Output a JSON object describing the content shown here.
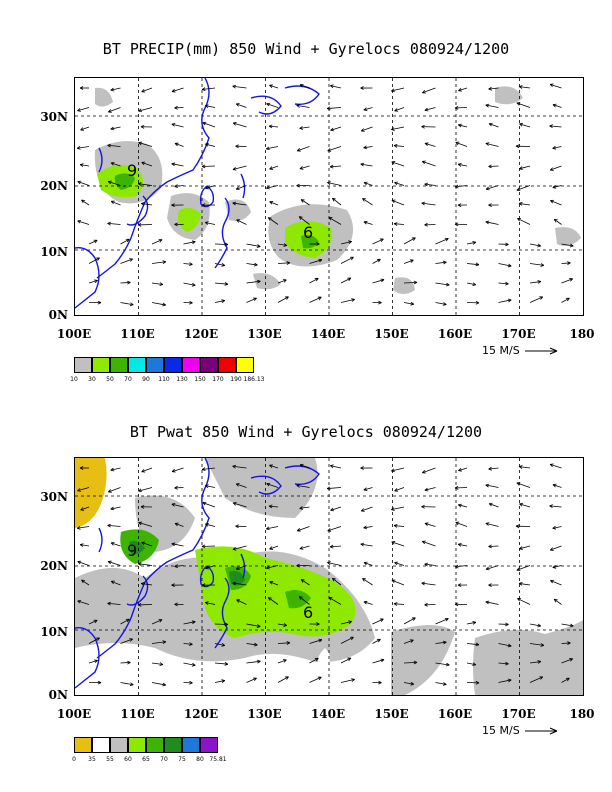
{
  "panels": [
    {
      "title": "BT PRECIP(mm) 850 Wind + Gyrelocs 080924/1200",
      "lat_labels": [
        "30N",
        "20N",
        "10N",
        "0N"
      ],
      "lon_labels": [
        "100E",
        "110E",
        "120E",
        "130E",
        "140E",
        "150E",
        "160E",
        "170E",
        "180"
      ],
      "ref_vector_label": "15 M/S",
      "storm_markers": [
        "9",
        "6"
      ],
      "legend": {
        "colors": [
          "#c0c0c0",
          "#8fe800",
          "#3cb400",
          "#00e8e8",
          "#1e78dc",
          "#0a28e8",
          "#f000f0",
          "#780078",
          "#f00000",
          "#ffff00"
        ],
        "labels": [
          "10",
          "30",
          "50",
          "70",
          "90",
          "110",
          "130",
          "150",
          "170",
          "190",
          "186.13"
        ]
      }
    },
    {
      "title": "BT Pwat 850 Wind + Gyrelocs 080924/1200",
      "lat_labels": [
        "30N",
        "20N",
        "10N",
        "0N"
      ],
      "lon_labels": [
        "100E",
        "110E",
        "120E",
        "130E",
        "140E",
        "150E",
        "160E",
        "170E",
        "180"
      ],
      "ref_vector_label": "15 M/S",
      "storm_markers": [
        "9",
        "6"
      ],
      "legend": {
        "colors": [
          "#e6be14",
          "#ffffff",
          "#c0c0c0",
          "#8fe800",
          "#3cb400",
          "#1e8c1e",
          "#1e78dc",
          "#8c14c8"
        ],
        "labels": [
          "0",
          "35",
          "55",
          "60",
          "65",
          "70",
          "75",
          "80",
          "75.81"
        ]
      }
    }
  ]
}
